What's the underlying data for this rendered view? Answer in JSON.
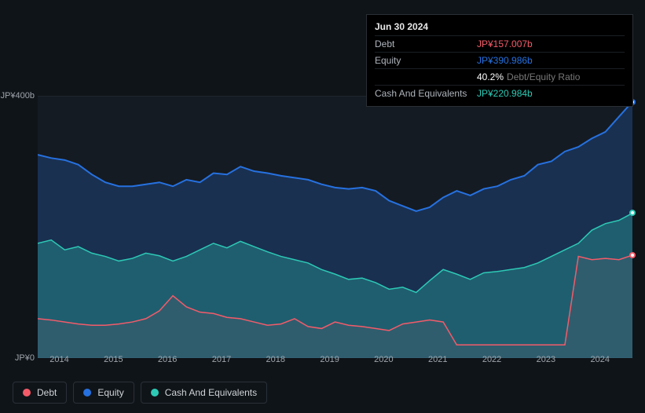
{
  "background_color": "#0f1419",
  "plot_background": "#151b22",
  "grid_color": "#2a3038",
  "text_color": "#9ea4ab",
  "tooltip": {
    "date": "Jun 30 2024",
    "rows": [
      {
        "label": "Debt",
        "value": "JP¥157.007b",
        "color": "#f45b69"
      },
      {
        "label": "Equity",
        "value": "JP¥390.986b",
        "color": "#2671e0"
      },
      {
        "label": "",
        "value": "40.2%",
        "extra": "Debt/Equity Ratio",
        "color": "#ffffff"
      },
      {
        "label": "Cash And Equivalents",
        "value": "JP¥220.984b",
        "color": "#2dc9b5"
      }
    ]
  },
  "chart": {
    "type": "area",
    "xlim": [
      2013.6,
      2024.6
    ],
    "ylim": [
      0,
      400
    ],
    "y_ticks": [
      {
        "v": 0,
        "label": "JP¥0"
      },
      {
        "v": 400,
        "label": "JP¥400b"
      }
    ],
    "x_ticks": [
      2014,
      2015,
      2016,
      2017,
      2018,
      2019,
      2020,
      2021,
      2022,
      2023,
      2024
    ],
    "series": {
      "equity": {
        "label": "Equity",
        "color": "#2671e0",
        "fill": "rgba(38,113,224,0.25)",
        "line_width": 2,
        "interactable": true,
        "points": [
          [
            2013.6,
            310
          ],
          [
            2013.85,
            305
          ],
          [
            2014.1,
            302
          ],
          [
            2014.35,
            295
          ],
          [
            2014.6,
            280
          ],
          [
            2014.85,
            268
          ],
          [
            2015.1,
            262
          ],
          [
            2015.35,
            262
          ],
          [
            2015.6,
            265
          ],
          [
            2015.85,
            268
          ],
          [
            2016.1,
            262
          ],
          [
            2016.35,
            272
          ],
          [
            2016.6,
            268
          ],
          [
            2016.85,
            282
          ],
          [
            2017.1,
            280
          ],
          [
            2017.35,
            292
          ],
          [
            2017.6,
            285
          ],
          [
            2017.85,
            282
          ],
          [
            2018.1,
            278
          ],
          [
            2018.35,
            275
          ],
          [
            2018.6,
            272
          ],
          [
            2018.85,
            265
          ],
          [
            2019.1,
            260
          ],
          [
            2019.35,
            258
          ],
          [
            2019.6,
            260
          ],
          [
            2019.85,
            255
          ],
          [
            2020.1,
            240
          ],
          [
            2020.35,
            232
          ],
          [
            2020.6,
            224
          ],
          [
            2020.85,
            230
          ],
          [
            2021.1,
            245
          ],
          [
            2021.35,
            255
          ],
          [
            2021.6,
            248
          ],
          [
            2021.85,
            258
          ],
          [
            2022.1,
            262
          ],
          [
            2022.35,
            272
          ],
          [
            2022.6,
            278
          ],
          [
            2022.85,
            295
          ],
          [
            2023.1,
            300
          ],
          [
            2023.35,
            315
          ],
          [
            2023.6,
            322
          ],
          [
            2023.85,
            335
          ],
          [
            2024.1,
            345
          ],
          [
            2024.35,
            368
          ],
          [
            2024.6,
            391
          ]
        ]
      },
      "cash": {
        "label": "Cash And Equivalents",
        "color": "#2dc9b5",
        "fill": "rgba(45,201,181,0.30)",
        "line_width": 1.5,
        "interactable": true,
        "points": [
          [
            2013.6,
            175
          ],
          [
            2013.85,
            180
          ],
          [
            2014.1,
            165
          ],
          [
            2014.35,
            170
          ],
          [
            2014.6,
            160
          ],
          [
            2014.85,
            155
          ],
          [
            2015.1,
            148
          ],
          [
            2015.35,
            152
          ],
          [
            2015.6,
            160
          ],
          [
            2015.85,
            156
          ],
          [
            2016.1,
            148
          ],
          [
            2016.35,
            155
          ],
          [
            2016.6,
            165
          ],
          [
            2016.85,
            175
          ],
          [
            2017.1,
            168
          ],
          [
            2017.35,
            178
          ],
          [
            2017.6,
            170
          ],
          [
            2017.85,
            162
          ],
          [
            2018.1,
            155
          ],
          [
            2018.35,
            150
          ],
          [
            2018.6,
            145
          ],
          [
            2018.85,
            135
          ],
          [
            2019.1,
            128
          ],
          [
            2019.35,
            120
          ],
          [
            2019.6,
            122
          ],
          [
            2019.85,
            115
          ],
          [
            2020.1,
            105
          ],
          [
            2020.35,
            108
          ],
          [
            2020.6,
            100
          ],
          [
            2020.85,
            118
          ],
          [
            2021.1,
            135
          ],
          [
            2021.35,
            128
          ],
          [
            2021.6,
            120
          ],
          [
            2021.85,
            130
          ],
          [
            2022.1,
            132
          ],
          [
            2022.35,
            135
          ],
          [
            2022.6,
            138
          ],
          [
            2022.85,
            145
          ],
          [
            2023.1,
            155
          ],
          [
            2023.35,
            165
          ],
          [
            2023.6,
            175
          ],
          [
            2023.85,
            195
          ],
          [
            2024.1,
            205
          ],
          [
            2024.35,
            210
          ],
          [
            2024.6,
            221
          ]
        ]
      },
      "debt": {
        "label": "Debt",
        "color": "#f45b69",
        "fill": "rgba(244,91,105,0.08)",
        "line_width": 1.5,
        "interactable": true,
        "points": [
          [
            2013.6,
            60
          ],
          [
            2013.85,
            58
          ],
          [
            2014.1,
            55
          ],
          [
            2014.35,
            52
          ],
          [
            2014.6,
            50
          ],
          [
            2014.85,
            50
          ],
          [
            2015.1,
            52
          ],
          [
            2015.35,
            55
          ],
          [
            2015.6,
            60
          ],
          [
            2015.85,
            72
          ],
          [
            2016.1,
            95
          ],
          [
            2016.35,
            78
          ],
          [
            2016.6,
            70
          ],
          [
            2016.85,
            68
          ],
          [
            2017.1,
            62
          ],
          [
            2017.35,
            60
          ],
          [
            2017.6,
            55
          ],
          [
            2017.85,
            50
          ],
          [
            2018.1,
            52
          ],
          [
            2018.35,
            60
          ],
          [
            2018.6,
            48
          ],
          [
            2018.85,
            45
          ],
          [
            2019.1,
            55
          ],
          [
            2019.35,
            50
          ],
          [
            2019.6,
            48
          ],
          [
            2019.85,
            45
          ],
          [
            2020.1,
            42
          ],
          [
            2020.35,
            52
          ],
          [
            2020.6,
            55
          ],
          [
            2020.85,
            58
          ],
          [
            2021.1,
            55
          ],
          [
            2021.35,
            20
          ],
          [
            2021.6,
            20
          ],
          [
            2021.85,
            20
          ],
          [
            2022.1,
            20
          ],
          [
            2022.35,
            20
          ],
          [
            2022.6,
            20
          ],
          [
            2022.85,
            20
          ],
          [
            2023.1,
            20
          ],
          [
            2023.35,
            20
          ],
          [
            2023.6,
            155
          ],
          [
            2023.85,
            150
          ],
          [
            2024.1,
            152
          ],
          [
            2024.35,
            150
          ],
          [
            2024.6,
            157
          ]
        ]
      }
    },
    "endpoint_markers": [
      "equity",
      "cash",
      "debt"
    ]
  },
  "legend": [
    {
      "key": "debt",
      "label": "Debt",
      "color": "#f45b69"
    },
    {
      "key": "equity",
      "label": "Equity",
      "color": "#2671e0"
    },
    {
      "key": "cash",
      "label": "Cash And Equivalents",
      "color": "#2dc9b5"
    }
  ]
}
